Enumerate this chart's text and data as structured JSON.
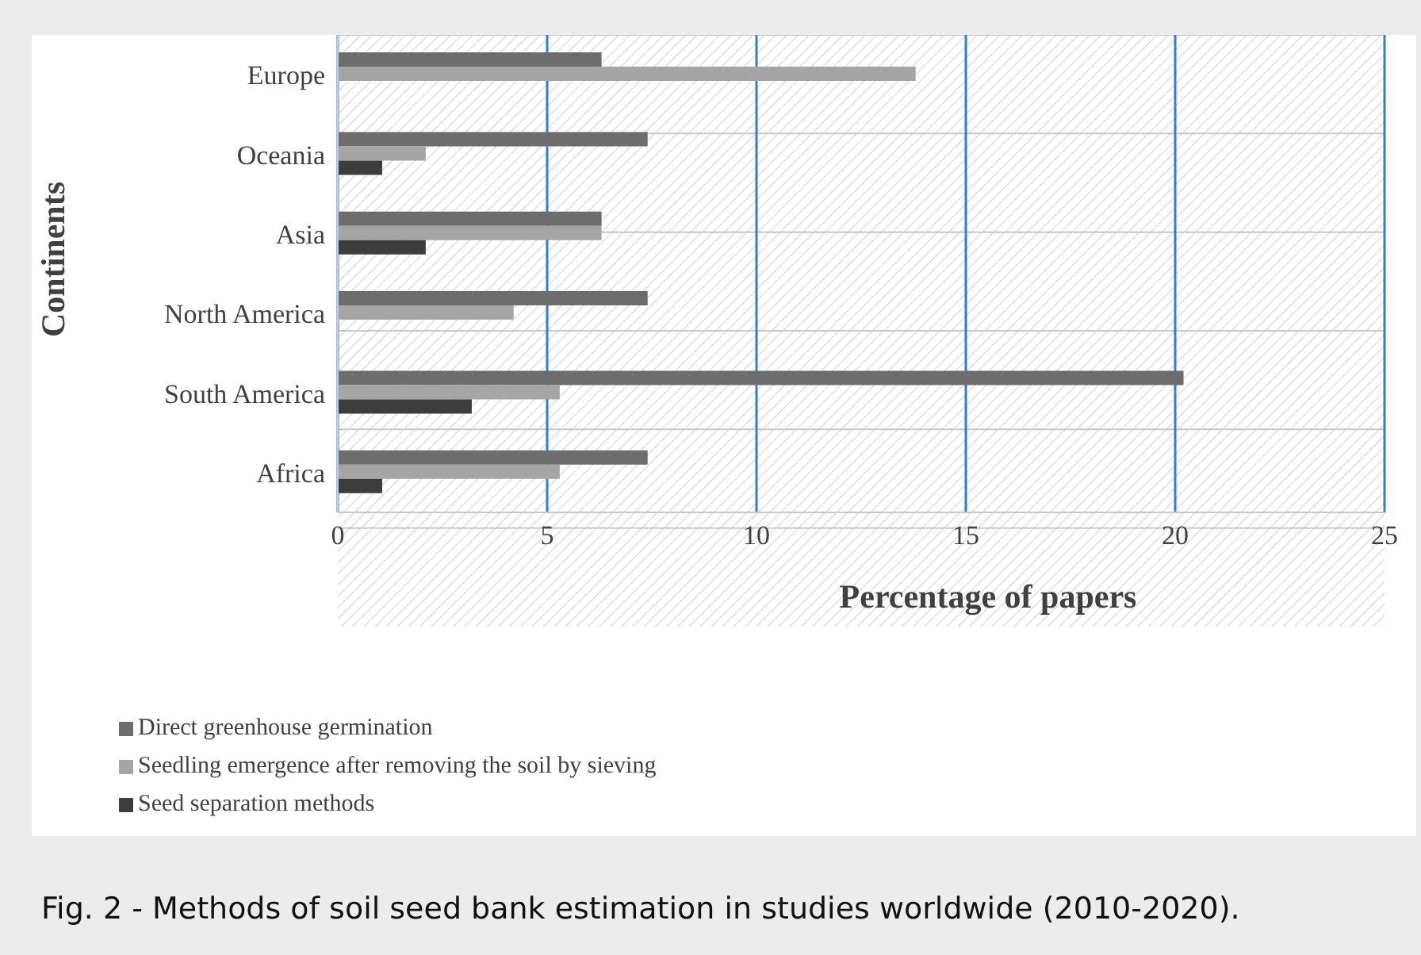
{
  "chart_data": {
    "type": "bar",
    "orientation": "horizontal",
    "categories": [
      "Europe",
      "Oceania",
      "Asia",
      "North America",
      "South America",
      "Africa"
    ],
    "series": [
      {
        "name": "Direct greenhouse germination",
        "color": "#6d6d6d",
        "values": [
          6.3,
          7.4,
          6.3,
          7.4,
          20.2,
          7.4
        ]
      },
      {
        "name": "Seedling emergence after removing the soil by sieving",
        "color": "#a5a5a5",
        "values": [
          13.8,
          2.1,
          6.3,
          4.2,
          5.3,
          5.3
        ]
      },
      {
        "name": "Seed separation methods",
        "color": "#3d3d3d",
        "values": [
          null,
          1.06,
          2.1,
          null,
          3.2,
          1.06
        ]
      }
    ],
    "xlim": [
      0,
      25
    ],
    "xticks": [
      0,
      5,
      10,
      15,
      20,
      25
    ],
    "xlabel": "Percentage of papers",
    "ylabel": "Continents",
    "grid": true,
    "legend": "bottom left",
    "annotations": [
      "Fig. 2 - Methods of soil seed bank estimation in studies worldwide (2010-2020)."
    ]
  }
}
